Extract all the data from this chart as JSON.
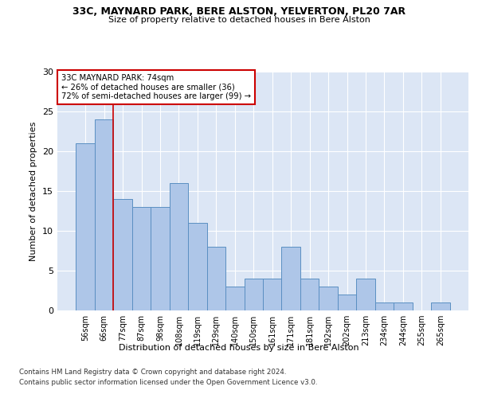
{
  "title": "33C, MAYNARD PARK, BERE ALSTON, YELVERTON, PL20 7AR",
  "subtitle": "Size of property relative to detached houses in Bere Alston",
  "xlabel": "Distribution of detached houses by size in Bere Alston",
  "ylabel": "Number of detached properties",
  "categories": [
    "56sqm",
    "66sqm",
    "77sqm",
    "87sqm",
    "98sqm",
    "108sqm",
    "119sqm",
    "129sqm",
    "140sqm",
    "150sqm",
    "161sqm",
    "171sqm",
    "181sqm",
    "192sqm",
    "202sqm",
    "213sqm",
    "234sqm",
    "244sqm",
    "255sqm",
    "265sqm"
  ],
  "values": [
    21,
    24,
    14,
    13,
    13,
    16,
    11,
    8,
    3,
    4,
    4,
    8,
    4,
    3,
    2,
    4,
    1,
    1,
    0,
    1
  ],
  "bar_color": "#aec6e8",
  "bar_edge_color": "#5a8fc2",
  "background_color": "#dce6f5",
  "grid_color": "#ffffff",
  "vline_x": 1.5,
  "vline_color": "#cc0000",
  "annotation_text": "33C MAYNARD PARK: 74sqm\n← 26% of detached houses are smaller (36)\n72% of semi-detached houses are larger (99) →",
  "annotation_box_color": "#ffffff",
  "annotation_box_edgecolor": "#cc0000",
  "ylim": [
    0,
    30
  ],
  "yticks": [
    0,
    5,
    10,
    15,
    20,
    25,
    30
  ],
  "footer1": "Contains HM Land Registry data © Crown copyright and database right 2024.",
  "footer2": "Contains public sector information licensed under the Open Government Licence v3.0."
}
